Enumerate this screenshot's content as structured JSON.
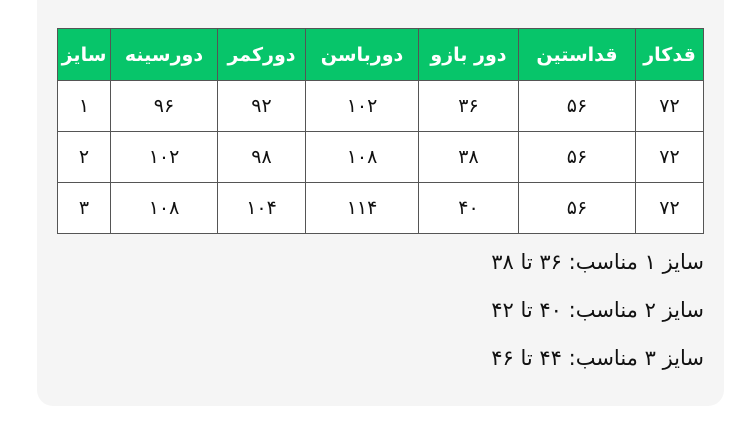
{
  "table": {
    "headers": [
      "قدکار",
      "قداستین",
      "دور بازو",
      "دورباسن",
      "دورکمر",
      "دورسینه",
      "سایز"
    ],
    "rows": [
      [
        "۷۲",
        "۵۶",
        "۳۶",
        "۱۰۲",
        "۹۲",
        "۹۶",
        "۱"
      ],
      [
        "۷۲",
        "۵۶",
        "۳۸",
        "۱۰۸",
        "۹۸",
        "۱۰۲",
        "۲"
      ],
      [
        "۷۲",
        "۵۶",
        "۴۰",
        "۱۱۴",
        "۱۰۴",
        "۱۰۸",
        "۳"
      ]
    ],
    "header_color": "#07c56a"
  },
  "notes": [
    "سایز ۱ مناسب: ۳۶ تا ۳۸",
    "سایز ۲ مناسب: ۴۰ تا ۴۲",
    "سایز ۳ مناسب: ۴۴ تا ۴۶"
  ]
}
